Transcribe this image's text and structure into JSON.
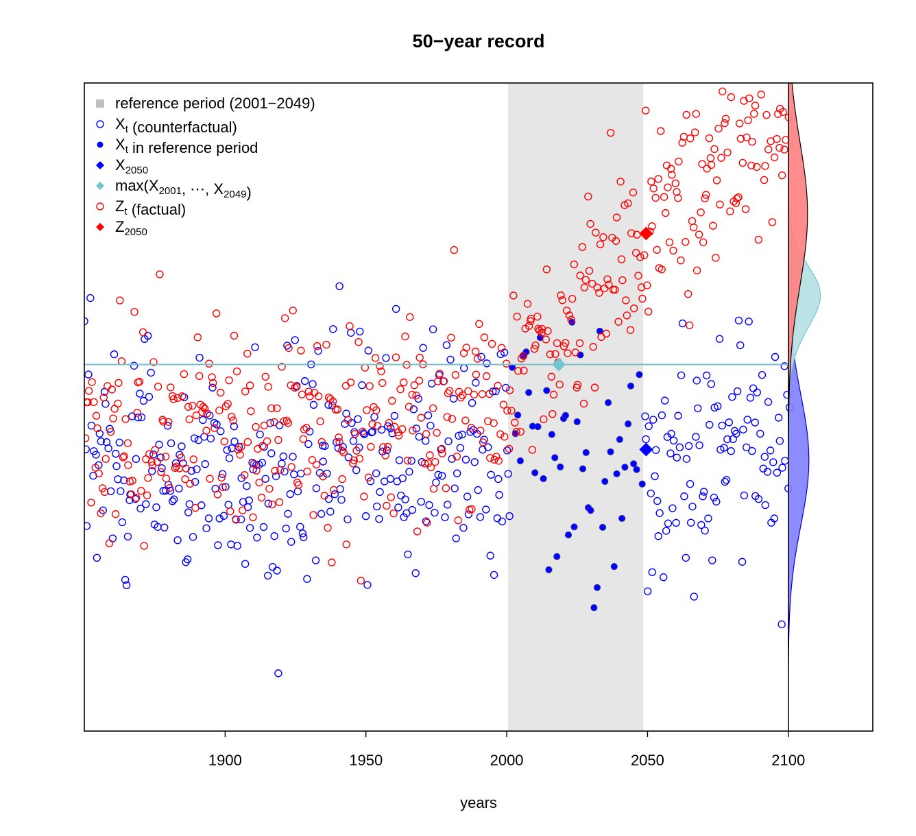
{
  "chart_data": {
    "type": "scatter",
    "title": "50−year record",
    "xlabel": "years",
    "ylabel": "",
    "xlim": [
      1850,
      2130
    ],
    "ylim": [
      -2.8,
      2.15
    ],
    "x_ticks": [
      "1900",
      "1950",
      "2000",
      "2050",
      "2100"
    ],
    "reference_period": [
      2000.5,
      2048.5
    ],
    "record_level": 0.0,
    "record_marker": {
      "x": 2018.5,
      "y": 0.0
    },
    "x2050": {
      "x": 2049.5,
      "y": -0.65
    },
    "z2050": {
      "x": 2049.5,
      "y": 1.0
    },
    "density_baseline_x": 2100,
    "legend": [
      {
        "key": "reference",
        "text": "reference period (2001−2049)"
      },
      {
        "key": "x_cf",
        "base": "X",
        "sub": "t",
        "rest": " (counterfactual)"
      },
      {
        "key": "x_ref",
        "base": "X",
        "sub": "t",
        "rest": " in reference period"
      },
      {
        "key": "x2050",
        "base": "X",
        "sub": "2050",
        "rest": ""
      },
      {
        "key": "max",
        "text": "max(X",
        "sub1": "2001",
        "mid": ", ⋯, X",
        "sub2": "2049",
        "end": ")"
      },
      {
        "key": "z_f",
        "base": "Z",
        "sub": "t",
        "rest": " (factual)"
      },
      {
        "key": "z2050",
        "base": "Z",
        "sub": "2050",
        "rest": ""
      }
    ],
    "colors": {
      "counterfactual": "#0000ff",
      "factual": "#ff0000",
      "record": "#74c4cc",
      "reference_band": "#e6e6e6",
      "density_red": "#ff8080",
      "density_blue": "#8080ff",
      "density_cyan": "#b4e0e3"
    }
  }
}
